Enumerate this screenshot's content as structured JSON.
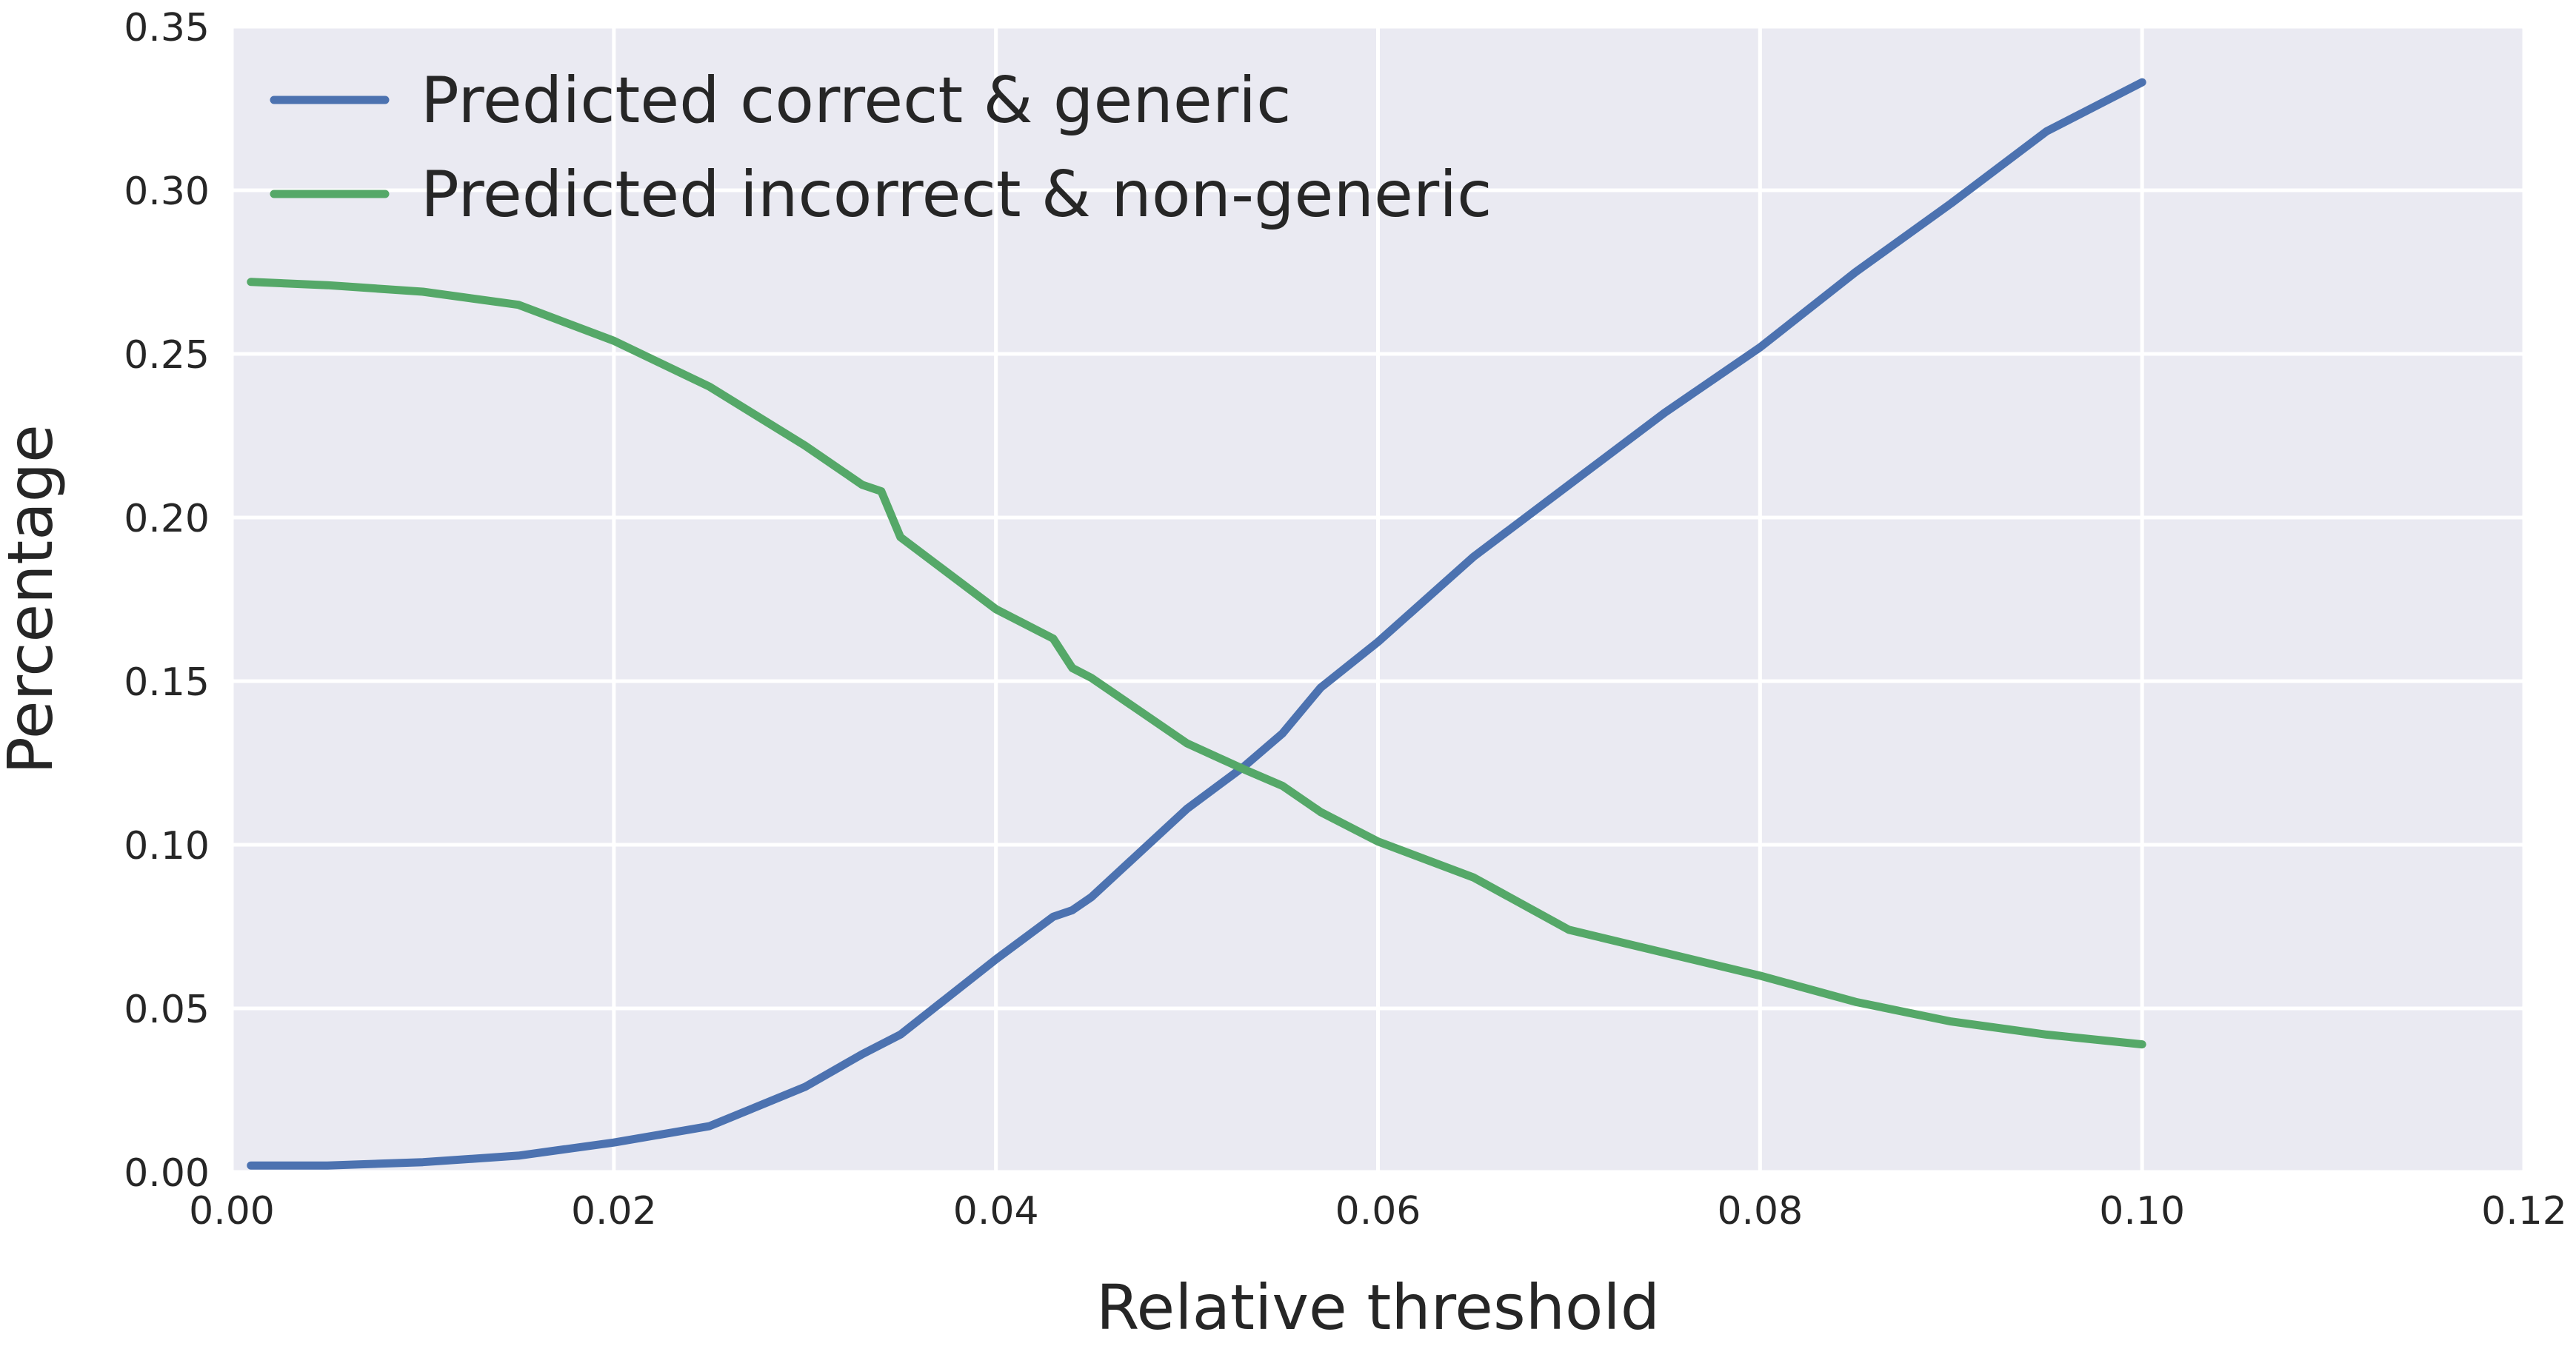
{
  "chart_data": {
    "type": "line",
    "title": "",
    "xlabel": "Relative threshold",
    "ylabel": "Percentage",
    "xlim": [
      0.0,
      0.12
    ],
    "ylim": [
      0.0,
      0.35
    ],
    "x_ticks": [
      "0.00",
      "0.02",
      "0.04",
      "0.06",
      "0.08",
      "0.10",
      "0.12"
    ],
    "y_ticks": [
      "0.00",
      "0.05",
      "0.10",
      "0.15",
      "0.20",
      "0.25",
      "0.30",
      "0.35"
    ],
    "grid": true,
    "legend_position": "top-left",
    "background_color": "#EAEAF2",
    "x": [
      0.001,
      0.005,
      0.01,
      0.015,
      0.02,
      0.025,
      0.03,
      0.033,
      0.034,
      0.035,
      0.04,
      0.043,
      0.044,
      0.045,
      0.05,
      0.053,
      0.055,
      0.057,
      0.06,
      0.065,
      0.07,
      0.075,
      0.08,
      0.085,
      0.09,
      0.095,
      0.1
    ],
    "series": [
      {
        "name": "Predicted correct & generic",
        "color": "#4C72B0",
        "values": [
          0.002,
          0.002,
          0.003,
          0.005,
          0.009,
          0.014,
          0.026,
          0.036,
          0.039,
          0.042,
          0.065,
          0.078,
          0.08,
          0.084,
          0.111,
          0.124,
          0.134,
          0.148,
          0.162,
          0.188,
          0.21,
          0.232,
          0.252,
          0.275,
          0.296,
          0.318,
          0.333
        ]
      },
      {
        "name": "Predicted incorrect & non-generic",
        "color": "#55A868",
        "values": [
          0.272,
          0.271,
          0.269,
          0.265,
          0.254,
          0.24,
          0.222,
          0.21,
          0.208,
          0.194,
          0.172,
          0.163,
          0.154,
          0.151,
          0.131,
          0.123,
          0.118,
          0.11,
          0.101,
          0.09,
          0.074,
          0.067,
          0.06,
          0.052,
          0.046,
          0.042,
          0.039
        ]
      }
    ]
  }
}
